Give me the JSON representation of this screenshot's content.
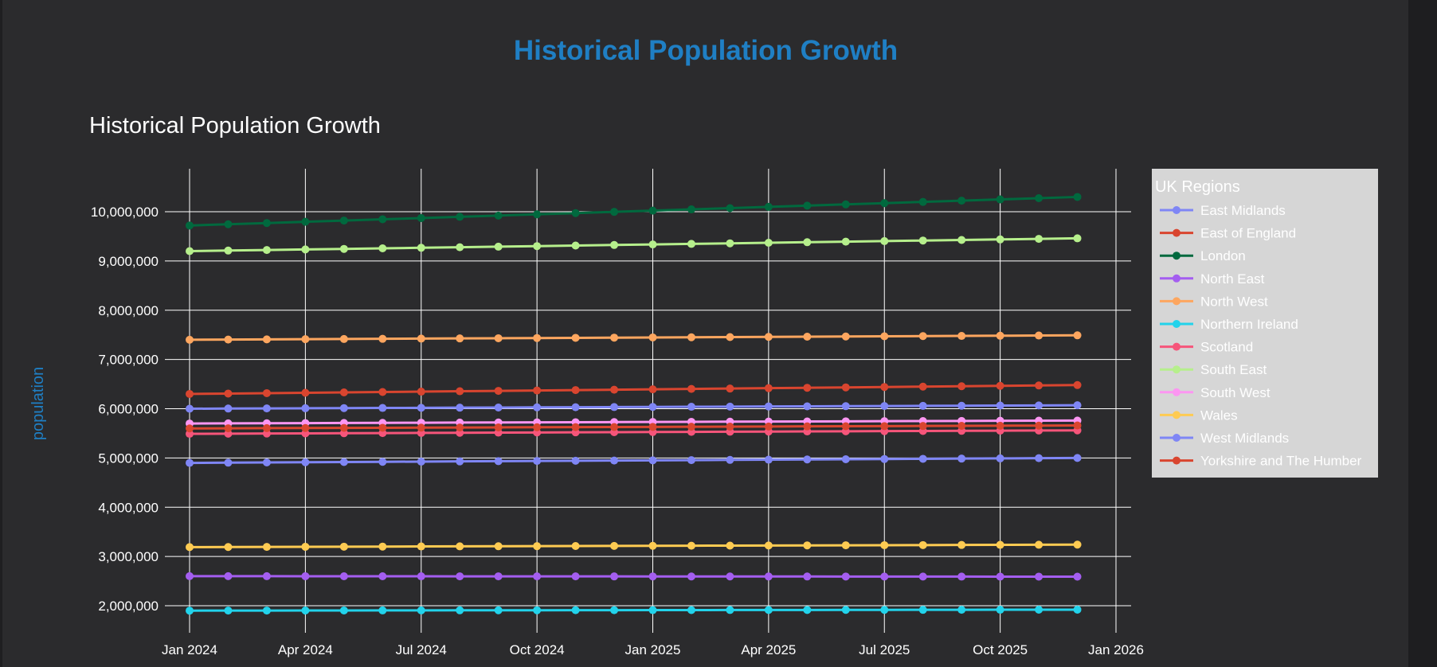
{
  "page": {
    "heading": "Historical Population Growth"
  },
  "chart_data": {
    "type": "line",
    "title": "Historical Population Growth",
    "xlabel": "",
    "ylabel": "population",
    "x_start": "2024-01",
    "x_ticks": [
      "Jan 2024",
      "Apr 2024",
      "Jul 2024",
      "Oct 2024",
      "Jan 2025",
      "Apr 2025",
      "Jul 2025",
      "Oct 2025",
      "Jan 2026"
    ],
    "x_range": [
      "2023-12",
      "2026-01"
    ],
    "y_ticks": [
      "2,000,000",
      "3,000,000",
      "4,000,000",
      "5,000,000",
      "6,000,000",
      "7,000,000",
      "8,000,000",
      "9,000,000",
      "10,000,000"
    ],
    "ylim": [
      1400000,
      10900000
    ],
    "grid": true,
    "legend_title": "UK Regions",
    "legend_position": "right",
    "series": [
      {
        "name": "East Midlands",
        "color": "#7f86f5",
        "start": 4900000,
        "end": 5000000
      },
      {
        "name": "East of England",
        "color": "#d9452f",
        "start": 6300000,
        "end": 6480000
      },
      {
        "name": "London",
        "color": "#00693e",
        "start": 9720000,
        "end": 10300000
      },
      {
        "name": "North East",
        "color": "#a45ef0",
        "start": 2600000,
        "end": 2590000
      },
      {
        "name": "North West",
        "color": "#fda65f",
        "start": 7400000,
        "end": 7490000
      },
      {
        "name": "Northern Ireland",
        "color": "#22d3eb",
        "start": 1900000,
        "end": 1920000
      },
      {
        "name": "Scotland",
        "color": "#f6557a",
        "start": 5490000,
        "end": 5560000
      },
      {
        "name": "South East",
        "color": "#b6ef8c",
        "start": 9200000,
        "end": 9460000
      },
      {
        "name": "South West",
        "color": "#fc96f2",
        "start": 5700000,
        "end": 5760000
      },
      {
        "name": "Wales",
        "color": "#fecb52",
        "start": 3190000,
        "end": 3240000
      },
      {
        "name": "West Midlands",
        "color": "#7f86f5",
        "start": 6000000,
        "end": 6070000
      },
      {
        "name": "Yorkshire and The Humber",
        "color": "#d9452f",
        "start": 5600000,
        "end": 5660000
      }
    ]
  }
}
